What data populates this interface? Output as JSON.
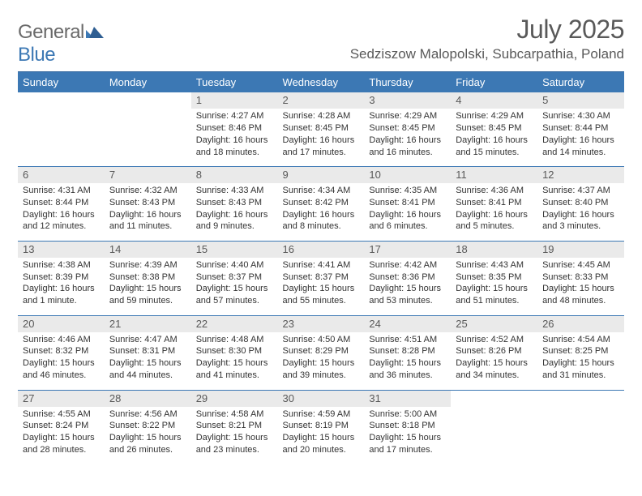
{
  "logo": {
    "word1": "General",
    "word2": "Blue"
  },
  "title": "July 2025",
  "location": "Sedziszow Malopolski, Subcarpathia, Poland",
  "colors": {
    "header_bg": "#3c78b4",
    "header_border": "#34679c",
    "daynum_bg": "#eaeaea",
    "text_muted": "#595959",
    "logo_gray": "#6a6a6a",
    "logo_blue": "#3c78b4"
  },
  "day_headers": [
    "Sunday",
    "Monday",
    "Tuesday",
    "Wednesday",
    "Thursday",
    "Friday",
    "Saturday"
  ],
  "weeks": [
    [
      null,
      null,
      {
        "n": "1",
        "sunrise": "4:27 AM",
        "sunset": "8:46 PM",
        "daylight": "16 hours and 18 minutes."
      },
      {
        "n": "2",
        "sunrise": "4:28 AM",
        "sunset": "8:45 PM",
        "daylight": "16 hours and 17 minutes."
      },
      {
        "n": "3",
        "sunrise": "4:29 AM",
        "sunset": "8:45 PM",
        "daylight": "16 hours and 16 minutes."
      },
      {
        "n": "4",
        "sunrise": "4:29 AM",
        "sunset": "8:45 PM",
        "daylight": "16 hours and 15 minutes."
      },
      {
        "n": "5",
        "sunrise": "4:30 AM",
        "sunset": "8:44 PM",
        "daylight": "16 hours and 14 minutes."
      }
    ],
    [
      {
        "n": "6",
        "sunrise": "4:31 AM",
        "sunset": "8:44 PM",
        "daylight": "16 hours and 12 minutes."
      },
      {
        "n": "7",
        "sunrise": "4:32 AM",
        "sunset": "8:43 PM",
        "daylight": "16 hours and 11 minutes."
      },
      {
        "n": "8",
        "sunrise": "4:33 AM",
        "sunset": "8:43 PM",
        "daylight": "16 hours and 9 minutes."
      },
      {
        "n": "9",
        "sunrise": "4:34 AM",
        "sunset": "8:42 PM",
        "daylight": "16 hours and 8 minutes."
      },
      {
        "n": "10",
        "sunrise": "4:35 AM",
        "sunset": "8:41 PM",
        "daylight": "16 hours and 6 minutes."
      },
      {
        "n": "11",
        "sunrise": "4:36 AM",
        "sunset": "8:41 PM",
        "daylight": "16 hours and 5 minutes."
      },
      {
        "n": "12",
        "sunrise": "4:37 AM",
        "sunset": "8:40 PM",
        "daylight": "16 hours and 3 minutes."
      }
    ],
    [
      {
        "n": "13",
        "sunrise": "4:38 AM",
        "sunset": "8:39 PM",
        "daylight": "16 hours and 1 minute."
      },
      {
        "n": "14",
        "sunrise": "4:39 AM",
        "sunset": "8:38 PM",
        "daylight": "15 hours and 59 minutes."
      },
      {
        "n": "15",
        "sunrise": "4:40 AM",
        "sunset": "8:37 PM",
        "daylight": "15 hours and 57 minutes."
      },
      {
        "n": "16",
        "sunrise": "4:41 AM",
        "sunset": "8:37 PM",
        "daylight": "15 hours and 55 minutes."
      },
      {
        "n": "17",
        "sunrise": "4:42 AM",
        "sunset": "8:36 PM",
        "daylight": "15 hours and 53 minutes."
      },
      {
        "n": "18",
        "sunrise": "4:43 AM",
        "sunset": "8:35 PM",
        "daylight": "15 hours and 51 minutes."
      },
      {
        "n": "19",
        "sunrise": "4:45 AM",
        "sunset": "8:33 PM",
        "daylight": "15 hours and 48 minutes."
      }
    ],
    [
      {
        "n": "20",
        "sunrise": "4:46 AM",
        "sunset": "8:32 PM",
        "daylight": "15 hours and 46 minutes."
      },
      {
        "n": "21",
        "sunrise": "4:47 AM",
        "sunset": "8:31 PM",
        "daylight": "15 hours and 44 minutes."
      },
      {
        "n": "22",
        "sunrise": "4:48 AM",
        "sunset": "8:30 PM",
        "daylight": "15 hours and 41 minutes."
      },
      {
        "n": "23",
        "sunrise": "4:50 AM",
        "sunset": "8:29 PM",
        "daylight": "15 hours and 39 minutes."
      },
      {
        "n": "24",
        "sunrise": "4:51 AM",
        "sunset": "8:28 PM",
        "daylight": "15 hours and 36 minutes."
      },
      {
        "n": "25",
        "sunrise": "4:52 AM",
        "sunset": "8:26 PM",
        "daylight": "15 hours and 34 minutes."
      },
      {
        "n": "26",
        "sunrise": "4:54 AM",
        "sunset": "8:25 PM",
        "daylight": "15 hours and 31 minutes."
      }
    ],
    [
      {
        "n": "27",
        "sunrise": "4:55 AM",
        "sunset": "8:24 PM",
        "daylight": "15 hours and 28 minutes."
      },
      {
        "n": "28",
        "sunrise": "4:56 AM",
        "sunset": "8:22 PM",
        "daylight": "15 hours and 26 minutes."
      },
      {
        "n": "29",
        "sunrise": "4:58 AM",
        "sunset": "8:21 PM",
        "daylight": "15 hours and 23 minutes."
      },
      {
        "n": "30",
        "sunrise": "4:59 AM",
        "sunset": "8:19 PM",
        "daylight": "15 hours and 20 minutes."
      },
      {
        "n": "31",
        "sunrise": "5:00 AM",
        "sunset": "8:18 PM",
        "daylight": "15 hours and 17 minutes."
      },
      null,
      null
    ]
  ],
  "labels": {
    "sunrise": "Sunrise: ",
    "sunset": "Sunset: ",
    "daylight": "Daylight: "
  }
}
